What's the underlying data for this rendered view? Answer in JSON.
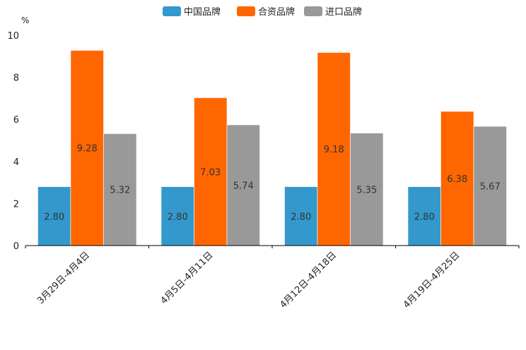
{
  "chart_data": {
    "type": "bar",
    "title": "",
    "xlabel": "",
    "ylabel": "%",
    "ylim": [
      0,
      10
    ],
    "yticks": [
      0,
      2,
      4,
      6,
      8,
      10
    ],
    "grid": false,
    "legend_position": "top-center",
    "categories": [
      "3月29日-4月4日",
      "4月5日-4月11日",
      "4月12日-4月18日",
      "4月19日-4月25日"
    ],
    "series": [
      {
        "name": "中国品牌",
        "color": "#3399cc",
        "values": [
          2.8,
          2.8,
          2.8,
          2.8
        ],
        "labels": [
          "2.80",
          "2.80",
          "2.80",
          "2.80"
        ]
      },
      {
        "name": "合资品牌",
        "color": "#ff6600",
        "values": [
          9.28,
          7.03,
          9.18,
          6.38
        ],
        "labels": [
          "9.28",
          "7.03",
          "9.18",
          "6.38"
        ]
      },
      {
        "name": "进口品牌",
        "color": "#999999",
        "values": [
          5.32,
          5.74,
          5.35,
          5.67
        ],
        "labels": [
          "5.32",
          "5.74",
          "5.35",
          "5.67"
        ]
      }
    ]
  }
}
